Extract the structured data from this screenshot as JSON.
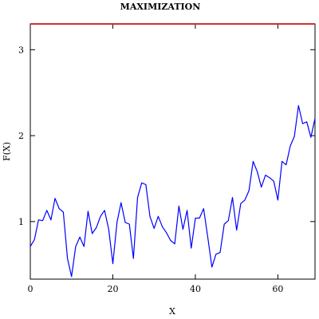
{
  "chart_data": {
    "type": "line",
    "title": "MAXIMIZATION",
    "xlabel": "X",
    "ylabel": "F(X)",
    "xlim": [
      0,
      69
    ],
    "ylim": [
      0.33,
      3.3
    ],
    "grid": false,
    "x_ticks": [
      0,
      20,
      40,
      60
    ],
    "y_ticks": [
      1,
      2,
      3
    ],
    "x_tick_labels": [
      "0",
      "20",
      "40",
      "60"
    ],
    "y_tick_labels": [
      "1",
      "2",
      "3"
    ],
    "colors": {
      "data": "#0000ff",
      "reference": "#cc3333"
    },
    "series": [
      {
        "role": "data",
        "x": [
          0,
          1,
          2,
          3,
          4,
          5,
          6,
          7,
          8,
          9,
          10,
          11,
          12,
          13,
          14,
          15,
          16,
          17,
          18,
          19,
          20,
          21,
          22,
          23,
          24,
          25,
          26,
          27,
          28,
          29,
          30,
          31,
          32,
          33,
          34,
          35,
          36,
          37,
          38,
          39,
          40,
          41,
          42,
          43,
          44,
          45,
          46,
          47,
          48,
          49,
          50,
          51,
          52,
          53,
          54,
          55,
          56,
          57,
          58,
          59,
          60,
          61,
          62,
          63,
          64,
          65,
          66,
          67,
          68,
          69
        ],
        "y": [
          0.71,
          0.79,
          1.02,
          1.01,
          1.13,
          1.02,
          1.27,
          1.15,
          1.11,
          0.57,
          0.36,
          0.71,
          0.82,
          0.71,
          1.12,
          0.86,
          0.93,
          1.06,
          1.13,
          0.91,
          0.51,
          0.99,
          1.22,
          0.99,
          0.97,
          0.57,
          1.28,
          1.45,
          1.43,
          1.06,
          0.92,
          1.06,
          0.94,
          0.87,
          0.78,
          0.74,
          1.18,
          0.91,
          1.13,
          0.69,
          1.04,
          1.04,
          1.15,
          0.82,
          0.47,
          0.62,
          0.64,
          0.97,
          1.01,
          1.28,
          0.9,
          1.21,
          1.25,
          1.36,
          1.7,
          1.58,
          1.4,
          1.54,
          1.51,
          1.47,
          1.25,
          1.7,
          1.66,
          1.88,
          1.99,
          2.35,
          2.14,
          2.16,
          1.98,
          2.2
        ]
      },
      {
        "role": "reference",
        "x": [
          0,
          69
        ],
        "y": [
          3.3,
          3.3
        ]
      }
    ]
  }
}
